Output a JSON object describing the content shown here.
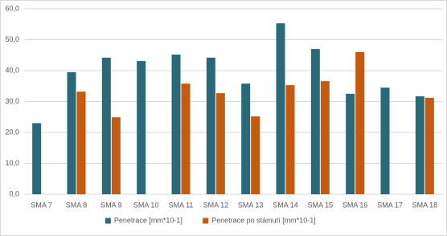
{
  "chart_data": {
    "type": "bar",
    "categories": [
      "SMA 7",
      "SMA 8",
      "SMA 9",
      "SMA 10",
      "SMA 11",
      "SMA 12",
      "SMA 13",
      "SMA 14",
      "SMA 15",
      "SMA 16",
      "SMA 17",
      "SMA 18"
    ],
    "series": [
      {
        "name": "Penetrace [mm*10-1]",
        "color": "#2a6a78",
        "values": [
          23,
          39.5,
          44.2,
          43.1,
          45.2,
          44.2,
          35.8,
          55.3,
          47.0,
          32.5,
          34.5,
          31.7
        ]
      },
      {
        "name": "Penetrace po stámutí [mm*10-1]",
        "color": "#c55a11",
        "values": [
          null,
          33.2,
          24.9,
          null,
          35.8,
          32.7,
          25.2,
          35.3,
          36.6,
          46.0,
          null,
          31.2
        ]
      }
    ],
    "ylim": [
      0,
      60
    ],
    "yticks": [
      {
        "value": 0,
        "label": "0,0"
      },
      {
        "value": 10,
        "label": "10,0"
      },
      {
        "value": 20,
        "label": "20,0"
      },
      {
        "value": 30,
        "label": "30,0"
      },
      {
        "value": 40,
        "label": "40,0"
      },
      {
        "value": 50,
        "label": "50,0"
      },
      {
        "value": 60,
        "label": "60,0"
      }
    ],
    "grid": true,
    "legend": "bottom"
  }
}
